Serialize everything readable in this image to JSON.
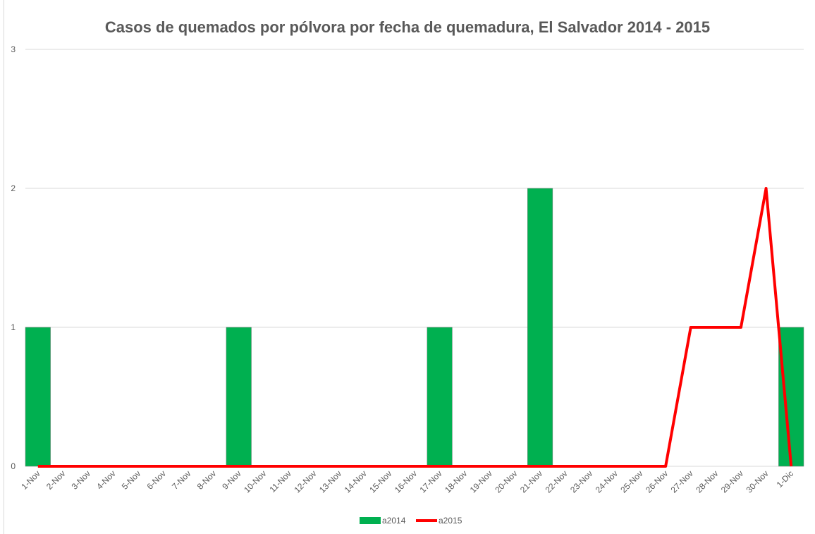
{
  "chart_data": {
    "type": "bar",
    "title": "Casos de quemados por pólvora por fecha de quemadura, El Salvador 2014 - 2015",
    "categories": [
      "1-Nov",
      "2-Nov",
      "3-Nov",
      "4-Nov",
      "5-Nov",
      "6-Nov",
      "7-Nov",
      "8-Nov",
      "9-Nov",
      "10-Nov",
      "11-Nov",
      "12-Nov",
      "13-Nov",
      "14-Nov",
      "15-Nov",
      "16-Nov",
      "17-Nov",
      "18-Nov",
      "19-Nov",
      "20-Nov",
      "21-Nov",
      "22-Nov",
      "23-Nov",
      "24-Nov",
      "25-Nov",
      "26-Nov",
      "27-Nov",
      "28-Nov",
      "29-Nov",
      "30-Nov",
      "1-Dic"
    ],
    "series": [
      {
        "name": "a2014",
        "type": "bar",
        "color": "#00b050",
        "values": [
          1,
          0,
          0,
          0,
          0,
          0,
          0,
          0,
          1,
          0,
          0,
          0,
          0,
          0,
          0,
          0,
          1,
          0,
          0,
          0,
          2,
          0,
          0,
          0,
          0,
          0,
          0,
          0,
          0,
          0,
          1
        ]
      },
      {
        "name": "a2015",
        "type": "line",
        "color": "#ff0000",
        "values": [
          0,
          0,
          0,
          0,
          0,
          0,
          0,
          0,
          0,
          0,
          0,
          0,
          0,
          0,
          0,
          0,
          0,
          0,
          0,
          0,
          0,
          0,
          0,
          0,
          0,
          0,
          1,
          1,
          1,
          2,
          0
        ]
      }
    ],
    "ylim": [
      0,
      3
    ],
    "yticks": [
      0,
      1,
      2,
      3
    ],
    "grid": true,
    "legend": "bottom"
  }
}
